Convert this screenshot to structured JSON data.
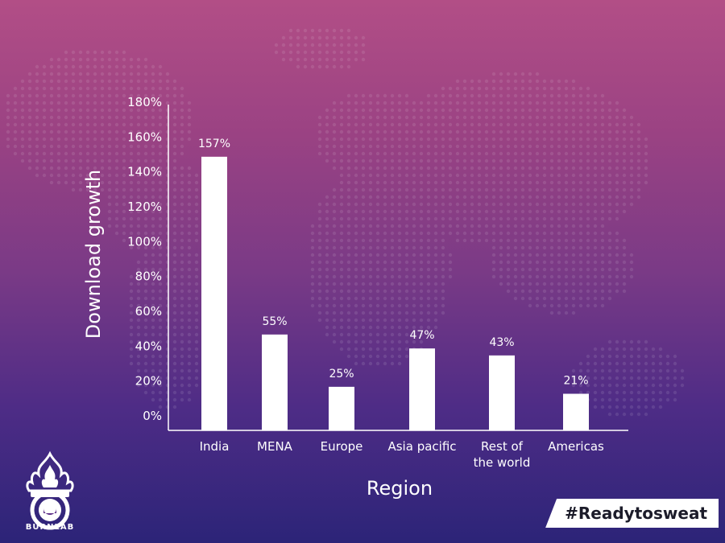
{
  "chart_data": {
    "type": "bar",
    "categories": [
      "India",
      "MENA",
      "Europe",
      "Asia pacific",
      "Rest of the world",
      "Americas"
    ],
    "category_lines": [
      [
        "India"
      ],
      [
        "MENA"
      ],
      [
        "Europe"
      ],
      [
        "Asia pacific"
      ],
      [
        "Rest of",
        "the world"
      ],
      [
        "Americas"
      ]
    ],
    "values": [
      157,
      55,
      25,
      47,
      43,
      21
    ],
    "value_labels": [
      "157%",
      "55%",
      "25%",
      "47%",
      "43%",
      "21%"
    ],
    "ylim": [
      0,
      180
    ],
    "yticks": [
      0,
      20,
      40,
      60,
      80,
      100,
      120,
      140,
      160,
      180
    ],
    "ytick_labels": [
      "0%",
      "20%",
      "40%",
      "60%",
      "80%",
      "100%",
      "120%",
      "140%",
      "160%",
      "180%"
    ],
    "xlabel": "Region",
    "ylabel": "Download growth",
    "bar_color": "#ffffff"
  },
  "brand": {
    "logo_text": "BURNLAB"
  },
  "hashtag": "#Readytosweat"
}
